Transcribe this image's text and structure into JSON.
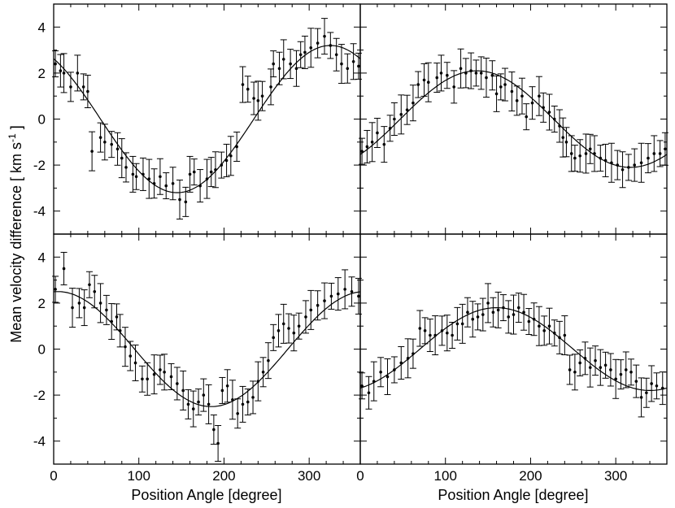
{
  "chart_data": {
    "type": "scatter",
    "layout": "2x2 panels, shared axes",
    "xlabel": "Position Angle [degree]",
    "ylabel": "Mean velocity difference [ km s",
    "ylabel_superscript": "-1",
    "ylabel_close": " ]",
    "xlim": [
      0,
      360
    ],
    "ylim": [
      -5,
      5
    ],
    "xticks": [
      0,
      100,
      200,
      300
    ],
    "yticks": [
      -4,
      -2,
      0,
      2,
      4
    ],
    "colors": {
      "points": "#000000",
      "error_bars": "#000000",
      "fit_line": "#000000"
    },
    "panels": [
      {
        "position": "top-left",
        "fit": {
          "model": "sinusoid",
          "amplitude": 3.2,
          "phase_deg": 145,
          "offset": 0.0
        },
        "points": [
          [
            2,
            2.4
          ],
          [
            8,
            2.1
          ],
          [
            12,
            2.0
          ],
          [
            20,
            1.4
          ],
          [
            28,
            2.0
          ],
          [
            35,
            1.4
          ],
          [
            40,
            1.2
          ],
          [
            45,
            -1.4
          ],
          [
            55,
            -0.8
          ],
          [
            60,
            -1.0
          ],
          [
            68,
            -1.1
          ],
          [
            75,
            -1.3
          ],
          [
            80,
            -1.7
          ],
          [
            85,
            -2.1
          ],
          [
            93,
            -2.4
          ],
          [
            97,
            -2.5
          ],
          [
            105,
            -2.4
          ],
          [
            112,
            -2.6
          ],
          [
            118,
            -2.8
          ],
          [
            125,
            -2.5
          ],
          [
            132,
            -2.9
          ],
          [
            140,
            -2.8
          ],
          [
            148,
            -3.5
          ],
          [
            155,
            -3.6
          ],
          [
            160,
            -2.4
          ],
          [
            165,
            -2.3
          ],
          [
            172,
            -2.9
          ],
          [
            180,
            -2.6
          ],
          [
            185,
            -2.3
          ],
          [
            190,
            -2.2
          ],
          [
            197,
            -2.0
          ],
          [
            203,
            -1.8
          ],
          [
            208,
            -1.6
          ],
          [
            215,
            -1.2
          ],
          [
            222,
            1.5
          ],
          [
            228,
            1.3
          ],
          [
            235,
            0.9
          ],
          [
            240,
            0.8
          ],
          [
            245,
            1.0
          ],
          [
            255,
            1.4
          ],
          [
            258,
            2.4
          ],
          [
            265,
            2.2
          ],
          [
            270,
            2.6
          ],
          [
            278,
            2.4
          ],
          [
            285,
            2.2
          ],
          [
            290,
            2.8
          ],
          [
            295,
            2.9
          ],
          [
            302,
            3.1
          ],
          [
            310,
            3.3
          ],
          [
            318,
            3.6
          ],
          [
            325,
            3.2
          ],
          [
            332,
            2.8
          ],
          [
            338,
            2.4
          ],
          [
            345,
            2.2
          ],
          [
            352,
            2.5
          ],
          [
            358,
            2.3
          ]
        ]
      },
      {
        "position": "top-right",
        "fit": {
          "model": "sinusoid",
          "amplitude": 2.1,
          "phase_deg": 137,
          "offset": 0.0
        },
        "points": [
          [
            2,
            -1.4
          ],
          [
            8,
            -1.2
          ],
          [
            14,
            -1.0
          ],
          [
            20,
            -0.6
          ],
          [
            28,
            -1.1
          ],
          [
            35,
            -0.4
          ],
          [
            40,
            0.0
          ],
          [
            48,
            0.2
          ],
          [
            55,
            0.4
          ],
          [
            62,
            0.7
          ],
          [
            68,
            1.5
          ],
          [
            75,
            1.7
          ],
          [
            80,
            1.6
          ],
          [
            90,
            1.8
          ],
          [
            95,
            2.0
          ],
          [
            102,
            1.9
          ],
          [
            110,
            1.4
          ],
          [
            118,
            2.2
          ],
          [
            124,
            2.0
          ],
          [
            130,
            2.1
          ],
          [
            136,
            2.0
          ],
          [
            142,
            2.0
          ],
          [
            148,
            1.8
          ],
          [
            155,
            1.9
          ],
          [
            160,
            1.1
          ],
          [
            165,
            1.4
          ],
          [
            170,
            1.5
          ],
          [
            178,
            1.2
          ],
          [
            184,
            0.8
          ],
          [
            190,
            1.0
          ],
          [
            195,
            0.1
          ],
          [
            202,
            0.7
          ],
          [
            210,
            1.0
          ],
          [
            215,
            0.5
          ],
          [
            222,
            0.3
          ],
          [
            228,
            0.0
          ],
          [
            234,
            -0.3
          ],
          [
            238,
            -0.8
          ],
          [
            242,
            -1.0
          ],
          [
            248,
            -1.5
          ],
          [
            252,
            -1.7
          ],
          [
            258,
            -1.6
          ],
          [
            265,
            -1.5
          ],
          [
            270,
            -1.3
          ],
          [
            275,
            -1.5
          ],
          [
            282,
            -1.7
          ],
          [
            288,
            -1.8
          ],
          [
            295,
            -1.9
          ],
          [
            302,
            -2.0
          ],
          [
            308,
            -2.2
          ],
          [
            315,
            -2.1
          ],
          [
            322,
            -2.0
          ],
          [
            330,
            -1.9
          ],
          [
            338,
            -1.7
          ],
          [
            345,
            -1.5
          ],
          [
            352,
            -1.5
          ],
          [
            358,
            -1.3
          ]
        ]
      },
      {
        "position": "bottom-left",
        "fit": {
          "model": "sinusoid",
          "amplitude": 2.5,
          "phase_deg": 185,
          "offset": 0.0
        },
        "points": [
          [
            2,
            2.6
          ],
          [
            12,
            3.5
          ],
          [
            22,
            1.8
          ],
          [
            30,
            2.0
          ],
          [
            36,
            1.8
          ],
          [
            42,
            2.8
          ],
          [
            48,
            2.5
          ],
          [
            55,
            2.0
          ],
          [
            62,
            1.7
          ],
          [
            68,
            1.2
          ],
          [
            74,
            1.4
          ],
          [
            78,
            0.8
          ],
          [
            84,
            0.1
          ],
          [
            90,
            -0.3
          ],
          [
            96,
            -0.6
          ],
          [
            104,
            -1.3
          ],
          [
            110,
            -1.3
          ],
          [
            118,
            -1.1
          ],
          [
            125,
            -0.9
          ],
          [
            130,
            -1.0
          ],
          [
            138,
            -1.2
          ],
          [
            145,
            -1.5
          ],
          [
            152,
            -1.8
          ],
          [
            158,
            -2.4
          ],
          [
            164,
            -2.6
          ],
          [
            170,
            -2.3
          ],
          [
            176,
            -2.0
          ],
          [
            182,
            -2.4
          ],
          [
            188,
            -3.5
          ],
          [
            193,
            -4.1
          ],
          [
            198,
            -1.8
          ],
          [
            204,
            -1.6
          ],
          [
            210,
            -2.2
          ],
          [
            216,
            -2.8
          ],
          [
            222,
            -2.4
          ],
          [
            228,
            -2.3
          ],
          [
            234,
            -2.1
          ],
          [
            240,
            -1.4
          ],
          [
            246,
            -1.0
          ],
          [
            252,
            -0.5
          ],
          [
            258,
            0.5
          ],
          [
            264,
            0.8
          ],
          [
            270,
            1.1
          ],
          [
            276,
            0.9
          ],
          [
            282,
            0.7
          ],
          [
            288,
            1.0
          ],
          [
            296,
            1.4
          ],
          [
            302,
            1.7
          ],
          [
            310,
            1.9
          ],
          [
            318,
            2.1
          ],
          [
            326,
            2.3
          ],
          [
            334,
            2.4
          ],
          [
            342,
            2.6
          ],
          [
            350,
            2.5
          ],
          [
            358,
            2.3
          ]
        ]
      },
      {
        "position": "bottom-right",
        "fit": {
          "model": "sinusoid",
          "amplitude": 1.8,
          "phase_deg": 160,
          "offset": 0.0
        },
        "points": [
          [
            2,
            -1.6
          ],
          [
            10,
            -1.9
          ],
          [
            16,
            -1.4
          ],
          [
            24,
            -1.0
          ],
          [
            32,
            -1.2
          ],
          [
            40,
            -0.9
          ],
          [
            48,
            -0.6
          ],
          [
            56,
            -0.4
          ],
          [
            62,
            -0.2
          ],
          [
            70,
            0.9
          ],
          [
            76,
            0.8
          ],
          [
            82,
            0.6
          ],
          [
            88,
            0.6
          ],
          [
            96,
            0.8
          ],
          [
            102,
            0.7
          ],
          [
            108,
            0.6
          ],
          [
            114,
            1.1
          ],
          [
            120,
            1.1
          ],
          [
            126,
            1.6
          ],
          [
            132,
            1.3
          ],
          [
            138,
            1.4
          ],
          [
            144,
            1.5
          ],
          [
            150,
            2.0
          ],
          [
            156,
            1.6
          ],
          [
            162,
            1.7
          ],
          [
            168,
            1.8
          ],
          [
            174,
            1.4
          ],
          [
            180,
            1.5
          ],
          [
            186,
            1.8
          ],
          [
            192,
            1.6
          ],
          [
            198,
            1.2
          ],
          [
            204,
            1.3
          ],
          [
            210,
            1.0
          ],
          [
            216,
            0.8
          ],
          [
            222,
            1.0
          ],
          [
            228,
            0.7
          ],
          [
            234,
            0.5
          ],
          [
            240,
            0.6
          ],
          [
            246,
            -0.9
          ],
          [
            252,
            -1.0
          ],
          [
            258,
            -0.6
          ],
          [
            264,
            -0.4
          ],
          [
            270,
            -0.8
          ],
          [
            276,
            -0.5
          ],
          [
            282,
            -0.8
          ],
          [
            288,
            -0.7
          ],
          [
            294,
            -0.9
          ],
          [
            300,
            -1.3
          ],
          [
            306,
            -1.1
          ],
          [
            312,
            -0.9
          ],
          [
            318,
            -1.0
          ],
          [
            324,
            -1.4
          ],
          [
            330,
            -2.1
          ],
          [
            336,
            -1.9
          ],
          [
            342,
            -1.5
          ],
          [
            348,
            -1.6
          ],
          [
            355,
            -1.7
          ]
        ]
      }
    ]
  }
}
